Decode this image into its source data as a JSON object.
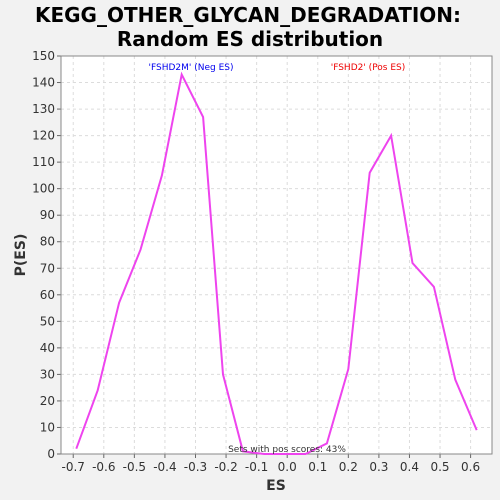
{
  "chart_data": {
    "type": "line",
    "title_line1": "KEGG_OTHER_GLYCAN_DEGRADATION:",
    "title_line2": "Random ES distribution",
    "xlabel": "ES",
    "ylabel": "P(ES)",
    "xlim": [
      -0.74,
      0.67
    ],
    "ylim": [
      0,
      150
    ],
    "x_ticks": [
      "-0.7",
      "-0.6",
      "-0.5",
      "-0.4",
      "-0.3",
      "-0.2",
      "-0.1",
      "0.0",
      "0.1",
      "0.2",
      "0.3",
      "0.4",
      "0.5",
      "0.6"
    ],
    "x_tick_values": [
      -0.7,
      -0.6,
      -0.5,
      -0.4,
      -0.3,
      -0.2,
      -0.1,
      0.0,
      0.1,
      0.2,
      0.3,
      0.4,
      0.5,
      0.6
    ],
    "y_ticks": [
      0,
      10,
      20,
      30,
      40,
      50,
      60,
      70,
      80,
      90,
      100,
      110,
      120,
      130,
      140,
      150
    ],
    "grid": true,
    "series": [
      {
        "color": "#ee44ee",
        "x": [
          -0.69,
          -0.62,
          -0.55,
          -0.48,
          -0.41,
          -0.345,
          -0.275,
          -0.21,
          -0.145,
          -0.075,
          -0.01,
          0.06,
          0.13,
          0.2,
          0.27,
          0.34,
          0.41,
          0.48,
          0.55,
          0.62
        ],
        "y": [
          2,
          24,
          57,
          77,
          105,
          143,
          127,
          30,
          1,
          0,
          0,
          0,
          4,
          32,
          106,
          120,
          72,
          63,
          28,
          9
        ]
      }
    ],
    "annotations": {
      "neg_label": "'FSHD2M' (Neg ES)",
      "neg_color": "#0000ee",
      "pos_label": "'FSHD2' (Pos ES)",
      "pos_color": "#ee0000",
      "pos_scores": "Sets with pos scores: 43%"
    }
  }
}
